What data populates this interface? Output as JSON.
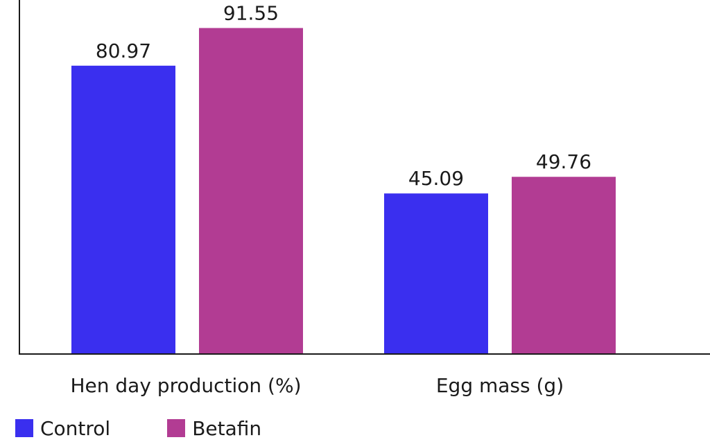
{
  "chart_data": {
    "type": "bar",
    "categories": [
      "Hen day production (%)",
      "Egg mass (g)"
    ],
    "series": [
      {
        "name": "Control",
        "color": "#3a2fef",
        "values": [
          80.97,
          45.09
        ]
      },
      {
        "name": "Betafin",
        "color": "#b23c93",
        "values": [
          91.55,
          49.76
        ]
      }
    ],
    "data_labels": [
      [
        "80.97",
        "45.09"
      ],
      [
        "91.55",
        "49.76"
      ]
    ],
    "ylim": [
      0,
      100
    ],
    "grid": false,
    "legend_position": "bottom-left"
  }
}
